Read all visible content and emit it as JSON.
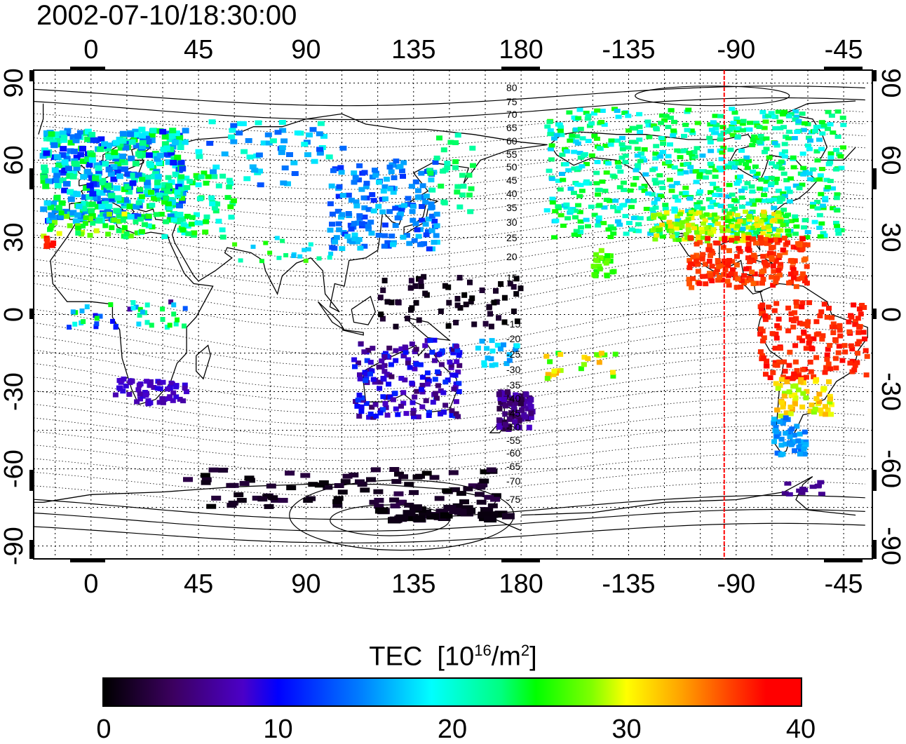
{
  "title": "2002-07-10/18:30:00",
  "map": {
    "lon_ticks_labels": [
      "0",
      "45",
      "90",
      "135",
      "180",
      "-135",
      "-90",
      "-45"
    ],
    "lon_ticks_values": [
      0,
      45,
      90,
      135,
      180,
      225,
      270,
      315
    ],
    "lat_ticks_labels": [
      "90",
      "60",
      "30",
      "0",
      "-30",
      "-60",
      "-90"
    ],
    "lat_ticks_values": [
      90,
      60,
      30,
      0,
      -30,
      -60,
      -90
    ],
    "lon_range": [
      -24,
      327
    ],
    "lat_range": [
      -95,
      95
    ],
    "magnetic_latitude_labels_north": [
      "80",
      "75",
      "70",
      "65",
      "60",
      "55",
      "50",
      "45",
      "40",
      "35",
      "30",
      "25",
      "20",
      "15"
    ],
    "magnetic_latitude_labels_south": [
      "-15",
      "-20",
      "-25",
      "-30",
      "-35",
      "-40",
      "-45",
      "-50",
      "-55",
      "-60",
      "-65",
      "-70",
      "-75"
    ],
    "terminator_longitude": -95,
    "terminator_color": "#ff0000",
    "grid": "dotted"
  },
  "colorbar": {
    "label_main": "TEC",
    "label_unit_pre": "[10",
    "label_unit_exp": "16",
    "label_unit_mid": "/m",
    "label_unit_exp2": "2",
    "label_unit_post": "]",
    "ticks": [
      "0",
      "10",
      "20",
      "30",
      "40"
    ],
    "range": [
      0,
      40
    ],
    "colormap": [
      "#000000",
      "#4b00c8",
      "#0000ff",
      "#00ffff",
      "#00ff00",
      "#ffff00",
      "#ff0000"
    ]
  }
}
